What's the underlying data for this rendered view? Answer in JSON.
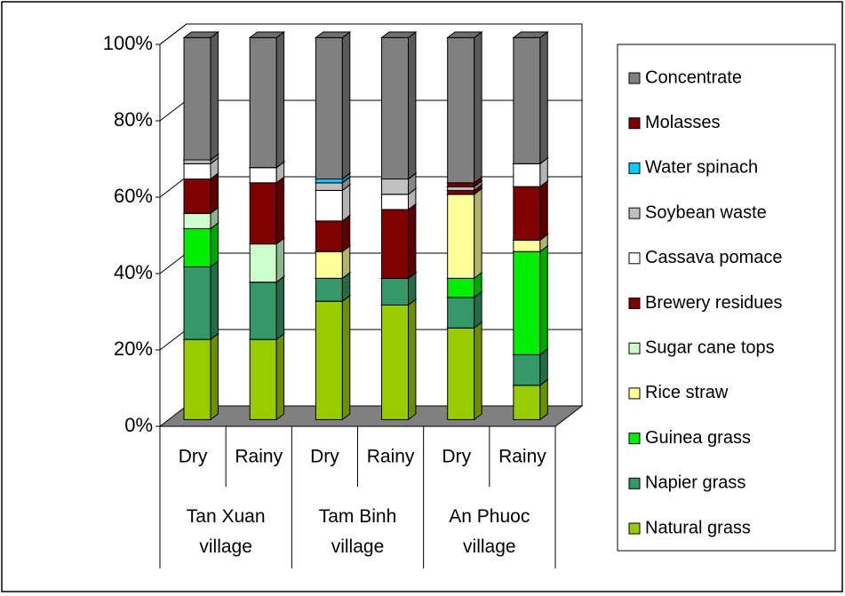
{
  "chart_data": {
    "type": "stacked_bar_3d",
    "categories": [
      "Dry",
      "Rainy",
      "Dry",
      "Rainy",
      "Dry",
      "Rainy"
    ],
    "groups": [
      "Tan Xuan village",
      "Tam Binh village",
      "An Phuoc village"
    ],
    "series": [
      {
        "name": "Natural grass",
        "color": "#99cc00",
        "values": [
          21,
          21,
          31,
          30,
          24,
          9
        ]
      },
      {
        "name": "Napier grass",
        "color": "#339966",
        "values": [
          19,
          15,
          6,
          7,
          8,
          8
        ]
      },
      {
        "name": "Guinea grass",
        "color": "#00ee00",
        "values": [
          10,
          0,
          0,
          0,
          5,
          27
        ]
      },
      {
        "name": "Rice straw",
        "color": "#ffff99",
        "values": [
          0,
          0,
          7,
          0,
          22,
          3
        ]
      },
      {
        "name": "Sugar cane tops",
        "color": "#ccffcc",
        "values": [
          4,
          10,
          0,
          0,
          0,
          0
        ]
      },
      {
        "name": "Brewery residues",
        "color": "#800000",
        "values": [
          9,
          16,
          8,
          18,
          1,
          14
        ]
      },
      {
        "name": "Cassava pomace",
        "color": "#ffffff",
        "values": [
          4,
          4,
          8,
          4,
          0,
          6
        ]
      },
      {
        "name": "Soybean waste",
        "color": "#c0c0c0",
        "values": [
          1,
          0,
          2,
          4,
          1,
          0
        ]
      },
      {
        "name": "Water spinach",
        "color": "#00ccff",
        "values": [
          0,
          0,
          1,
          0,
          0,
          0
        ]
      },
      {
        "name": "Molasses",
        "color": "#800000",
        "values": [
          0,
          0,
          0,
          0,
          1,
          0
        ]
      },
      {
        "name": "Concentrate",
        "color": "#808080",
        "values": [
          32,
          34,
          37,
          37,
          38,
          33
        ]
      }
    ],
    "ylim": [
      0,
      100
    ],
    "yticks": [
      {
        "value": 0,
        "label": "0%"
      },
      {
        "value": 20,
        "label": "20%"
      },
      {
        "value": 40,
        "label": "40%"
      },
      {
        "value": 60,
        "label": "60%"
      },
      {
        "value": 80,
        "label": "80%"
      },
      {
        "value": 100,
        "label": "100%"
      }
    ],
    "grid": true,
    "legend": "right"
  }
}
